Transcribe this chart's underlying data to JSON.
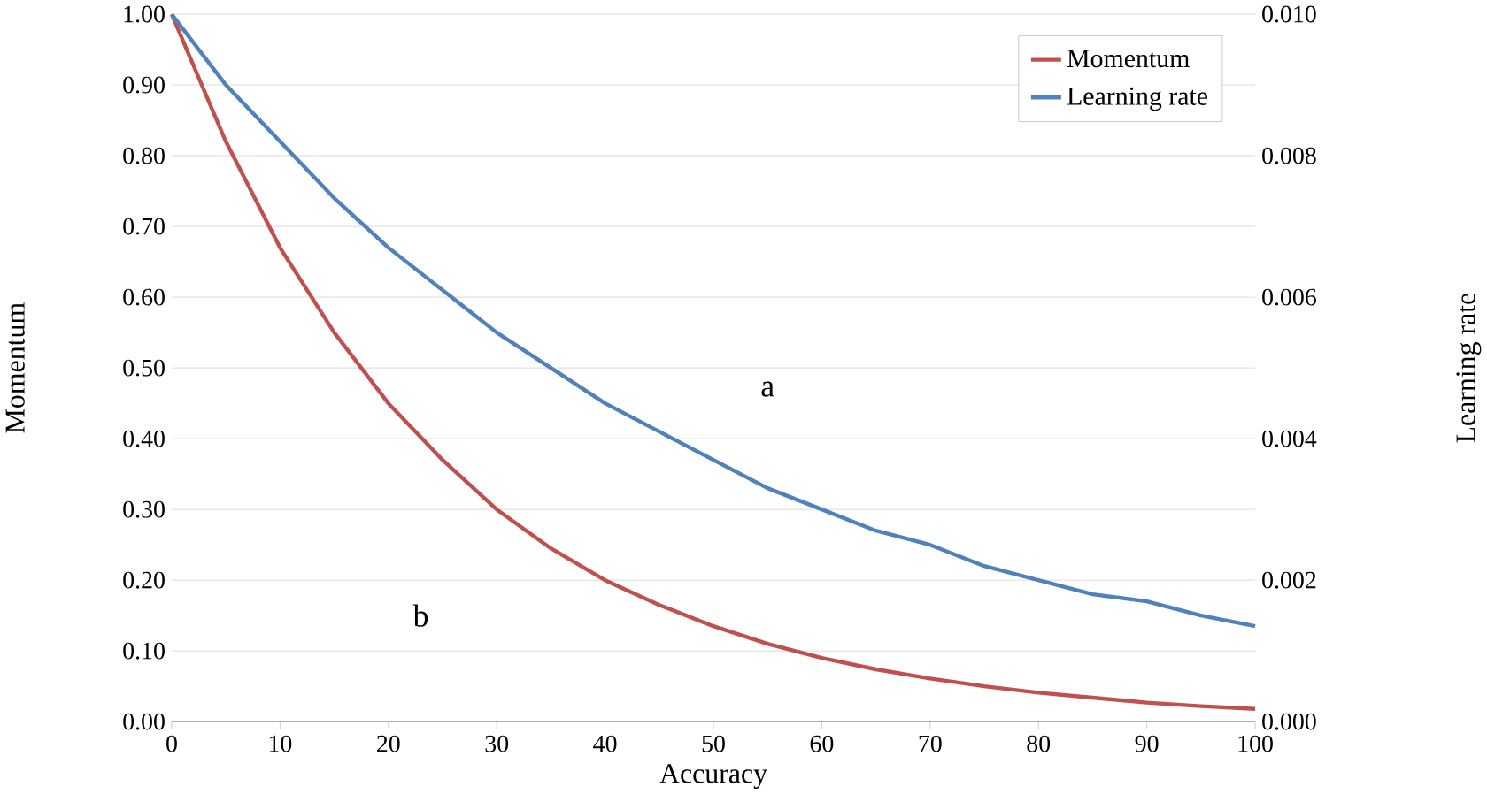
{
  "chart_data": {
    "type": "line",
    "xlabel": "Accuracy",
    "ylabel": "Momentum",
    "y2label": "Learning rate",
    "x": [
      0,
      5,
      10,
      15,
      20,
      25,
      30,
      35,
      40,
      45,
      50,
      55,
      60,
      65,
      70,
      75,
      80,
      85,
      90,
      95,
      100
    ],
    "series": [
      {
        "name": "Momentum",
        "color": "#c0504d",
        "values": [
          1.0,
          0.82,
          0.67,
          0.55,
          0.45,
          0.37,
          0.3,
          0.245,
          0.2,
          0.165,
          0.135,
          0.11,
          0.09,
          0.074,
          0.061,
          0.05,
          0.041,
          0.034,
          0.027,
          0.022,
          0.018
        ]
      },
      {
        "name": "Learning rate",
        "color": "#4f81bd",
        "axis": "y2",
        "values": [
          0.01,
          0.009,
          0.0082,
          0.0074,
          0.0067,
          0.0061,
          0.0055,
          0.005,
          0.0045,
          0.0041,
          0.0037,
          0.0033,
          0.003,
          0.0027,
          0.0025,
          0.0022,
          0.002,
          0.0018,
          0.0017,
          0.0015,
          0.00135
        ]
      }
    ],
    "xlim": [
      0,
      100
    ],
    "xticks": [
      0,
      10,
      20,
      30,
      40,
      50,
      60,
      70,
      80,
      90,
      100
    ],
    "ylim": [
      0,
      1
    ],
    "yticks": [
      {
        "value": 0,
        "label": "0.00"
      },
      {
        "value": 0.1,
        "label": "0.10"
      },
      {
        "value": 0.2,
        "label": "0.20"
      },
      {
        "value": 0.3,
        "label": "0.30"
      },
      {
        "value": 0.4,
        "label": "0.40"
      },
      {
        "value": 0.5,
        "label": "0.50"
      },
      {
        "value": 0.6,
        "label": "0.60"
      },
      {
        "value": 0.7,
        "label": "0.70"
      },
      {
        "value": 0.8,
        "label": "0.80"
      },
      {
        "value": 0.9,
        "label": "0.90"
      },
      {
        "value": 1,
        "label": "1.00"
      }
    ],
    "y2lim": [
      0,
      0.01
    ],
    "y2ticks": [
      {
        "value": 0,
        "label": "0.000"
      },
      {
        "value": 0.002,
        "label": "0.002"
      },
      {
        "value": 0.004,
        "label": "0.004"
      },
      {
        "value": 0.006,
        "label": "0.006"
      },
      {
        "value": 0.008,
        "label": "0.008"
      },
      {
        "value": 0.01,
        "label": "0.010"
      }
    ],
    "annotations": [
      {
        "text": "a",
        "x": 55,
        "y": 0.47
      },
      {
        "text": "b",
        "x": 23,
        "y": 0.15
      }
    ],
    "grid": "y",
    "legend": "top right",
    "marker": "none",
    "line_style": "solid"
  }
}
